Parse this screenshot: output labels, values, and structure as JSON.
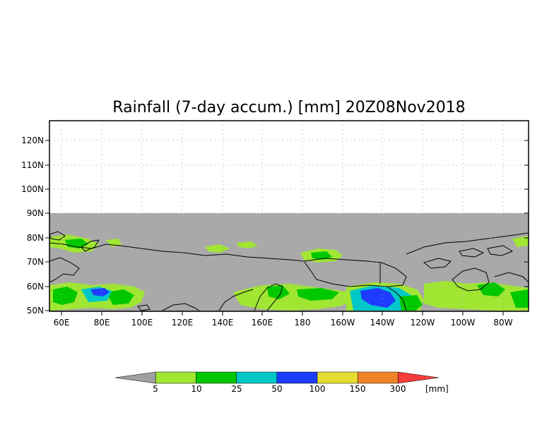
{
  "title": "Rainfall (7-day accum.) [mm] 20Z08Nov2018",
  "lat_labels": [
    "120N",
    "110N",
    "100N",
    "90N",
    "80N",
    "70N",
    "60N",
    "50N"
  ],
  "lon_labels": [
    "60E",
    "80E",
    "100E",
    "120E",
    "140E",
    "160E",
    "180",
    "160W",
    "140W",
    "120W",
    "100W",
    "80W"
  ],
  "colorbar": {
    "unit": "[mm]",
    "thresholds": [
      "5",
      "10",
      "25",
      "50",
      "100",
      "150",
      "300"
    ],
    "colors": [
      "#a0a0a0",
      "#a0e632",
      "#00c800",
      "#00c8c8",
      "#1e3cff",
      "#e6dc32",
      "#f08228",
      "#fa3c3c"
    ]
  },
  "colors": {
    "land_no_rain": "#a9a9a9",
    "coast": "#000000",
    "grid": "#a0a0a0"
  }
}
